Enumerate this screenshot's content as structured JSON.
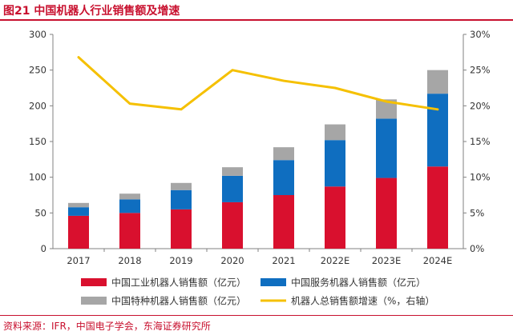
{
  "figure": {
    "title": "图21  中国机器人行业销售额及增速",
    "source": "资料来源：IFR，中国电子学会，东海证券研究所"
  },
  "chart_data": {
    "type": "bar",
    "stacked": true,
    "title": "中国机器人行业销售额及增速",
    "categories": [
      "2017",
      "2018",
      "2019",
      "2020",
      "2021",
      "2022E",
      "2023E",
      "2024E"
    ],
    "series": [
      {
        "name": "中国工业机器人销售额（亿元）",
        "type": "bar",
        "axis": "left",
        "color": "#d9102e",
        "values": [
          46,
          50,
          55,
          65,
          75,
          87,
          99,
          115
        ]
      },
      {
        "name": "中国服务机器人销售额（亿元）",
        "type": "bar",
        "axis": "left",
        "color": "#0f6ec0",
        "values": [
          12,
          19,
          27,
          37,
          49,
          65,
          83,
          102
        ]
      },
      {
        "name": "中国特种机器人销售额（亿元）",
        "type": "bar",
        "axis": "left",
        "color": "#a6a6a6",
        "values": [
          6,
          8,
          10,
          12,
          18,
          22,
          27,
          33
        ]
      },
      {
        "name": "机器人总销售额增速（%，右轴）",
        "type": "line",
        "axis": "right",
        "color": "#f5c000",
        "values": [
          26.8,
          20.3,
          19.5,
          25.0,
          23.5,
          22.5,
          20.6,
          19.5
        ]
      }
    ],
    "ylim_left": [
      0,
      300
    ],
    "yticks_left": [
      "0",
      "50",
      "100",
      "150",
      "200",
      "250",
      "300"
    ],
    "ylim_right": [
      0,
      30
    ],
    "yticks_right": [
      "0%",
      "5%",
      "10%",
      "15%",
      "20%",
      "25%",
      "30%"
    ],
    "grid": false,
    "legend_position": "bottom"
  }
}
